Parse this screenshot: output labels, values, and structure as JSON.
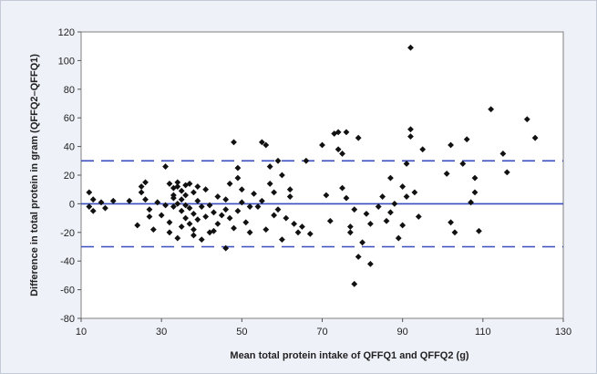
{
  "chart_data": {
    "type": "scatter",
    "title": "",
    "xlabel": "Mean total protein intake of  QFFQ1 and  QFFQ2 (g)",
    "ylabel": "Difference in total protein in gram (QFFQ2–QFFQ1)",
    "xlim": [
      10,
      130
    ],
    "ylim": [
      -80,
      120
    ],
    "xticks": [
      10,
      30,
      50,
      70,
      90,
      110,
      130
    ],
    "yticks": [
      -80,
      -60,
      -40,
      -20,
      0,
      20,
      40,
      60,
      80,
      100,
      120
    ],
    "grid": false,
    "legend": "none",
    "reference_lines": [
      {
        "value": 30,
        "style": "dashed"
      },
      {
        "value": 0,
        "style": "solid"
      },
      {
        "value": -30,
        "style": "dashed"
      }
    ],
    "colors": {
      "points": "#111111",
      "lines": "#3a4dbf",
      "plot_background": "#ffffff",
      "panel_background": "#eef1f8"
    },
    "points": [
      [
        12,
        8
      ],
      [
        12,
        -2
      ],
      [
        13,
        -5
      ],
      [
        13,
        3
      ],
      [
        15,
        1
      ],
      [
        16,
        -3
      ],
      [
        18,
        2
      ],
      [
        22,
        2
      ],
      [
        24,
        -15
      ],
      [
        25,
        8
      ],
      [
        25,
        12
      ],
      [
        26,
        15
      ],
      [
        26,
        3
      ],
      [
        27,
        -4
      ],
      [
        27,
        -9
      ],
      [
        28,
        -18
      ],
      [
        29,
        1
      ],
      [
        30,
        -8
      ],
      [
        31,
        26
      ],
      [
        31,
        -1
      ],
      [
        32,
        14
      ],
      [
        32,
        -13
      ],
      [
        32,
        -20
      ],
      [
        33,
        11
      ],
      [
        33,
        6
      ],
      [
        33,
        4
      ],
      [
        33,
        -2
      ],
      [
        34,
        15
      ],
      [
        34,
        12
      ],
      [
        34,
        0
      ],
      [
        34,
        -24
      ],
      [
        35,
        9
      ],
      [
        35,
        3
      ],
      [
        35,
        -5
      ],
      [
        35,
        -16
      ],
      [
        36,
        13
      ],
      [
        36,
        6
      ],
      [
        36,
        -1
      ],
      [
        36,
        -10
      ],
      [
        37,
        14
      ],
      [
        37,
        -3
      ],
      [
        37,
        -14
      ],
      [
        38,
        8
      ],
      [
        38,
        -22
      ],
      [
        38,
        -18
      ],
      [
        38,
        -7
      ],
      [
        39,
        12
      ],
      [
        39,
        2
      ],
      [
        39,
        -11
      ],
      [
        40,
        -2
      ],
      [
        40,
        -25
      ],
      [
        41,
        10
      ],
      [
        41,
        -9
      ],
      [
        42,
        -1
      ],
      [
        42,
        -20
      ],
      [
        43,
        -6
      ],
      [
        43,
        -19
      ],
      [
        44,
        5
      ],
      [
        44,
        -14
      ],
      [
        45,
        -8
      ],
      [
        46,
        -31
      ],
      [
        46,
        -4
      ],
      [
        46,
        3
      ],
      [
        47,
        14
      ],
      [
        47,
        -10
      ],
      [
        48,
        43
      ],
      [
        48,
        -17
      ],
      [
        49,
        18
      ],
      [
        49,
        25
      ],
      [
        49,
        -5
      ],
      [
        50,
        1
      ],
      [
        50,
        10
      ],
      [
        51,
        -13
      ],
      [
        52,
        -20
      ],
      [
        52,
        -2
      ],
      [
        53,
        7
      ],
      [
        54,
        -2
      ],
      [
        55,
        43
      ],
      [
        55,
        2
      ],
      [
        56,
        41
      ],
      [
        56,
        -18
      ],
      [
        57,
        26
      ],
      [
        57,
        14
      ],
      [
        58,
        8
      ],
      [
        58,
        -8
      ],
      [
        59,
        30
      ],
      [
        59,
        -4
      ],
      [
        60,
        20
      ],
      [
        60,
        -25
      ],
      [
        61,
        -10
      ],
      [
        62,
        5
      ],
      [
        62,
        10
      ],
      [
        63,
        -14
      ],
      [
        64,
        -20
      ],
      [
        65,
        -16
      ],
      [
        66,
        30
      ],
      [
        67,
        -21
      ],
      [
        70,
        41
      ],
      [
        71,
        6
      ],
      [
        72,
        -12
      ],
      [
        73,
        49
      ],
      [
        74,
        50
      ],
      [
        74,
        38
      ],
      [
        75,
        11
      ],
      [
        75,
        35
      ],
      [
        76,
        50
      ],
      [
        76,
        4
      ],
      [
        77,
        -20
      ],
      [
        77,
        -16
      ],
      [
        78,
        -4
      ],
      [
        78,
        -56
      ],
      [
        79,
        46
      ],
      [
        79,
        -37
      ],
      [
        80,
        -27
      ],
      [
        81,
        -7
      ],
      [
        82,
        -42
      ],
      [
        82,
        -14
      ],
      [
        84,
        -2
      ],
      [
        85,
        5
      ],
      [
        86,
        -12
      ],
      [
        87,
        18
      ],
      [
        87,
        -6
      ],
      [
        88,
        0
      ],
      [
        89,
        -24
      ],
      [
        90,
        12
      ],
      [
        90,
        -15
      ],
      [
        91,
        5
      ],
      [
        91,
        28
      ],
      [
        92,
        109
      ],
      [
        92,
        52
      ],
      [
        92,
        47
      ],
      [
        93,
        8
      ],
      [
        94,
        -9
      ],
      [
        95,
        38
      ],
      [
        101,
        21
      ],
      [
        102,
        41
      ],
      [
        102,
        -13
      ],
      [
        103,
        -20
      ],
      [
        105,
        28
      ],
      [
        106,
        45
      ],
      [
        107,
        1
      ],
      [
        108,
        8
      ],
      [
        108,
        18
      ],
      [
        109,
        -19
      ],
      [
        112,
        66
      ],
      [
        115,
        35
      ],
      [
        116,
        22
      ],
      [
        121,
        59
      ],
      [
        123,
        46
      ]
    ]
  }
}
